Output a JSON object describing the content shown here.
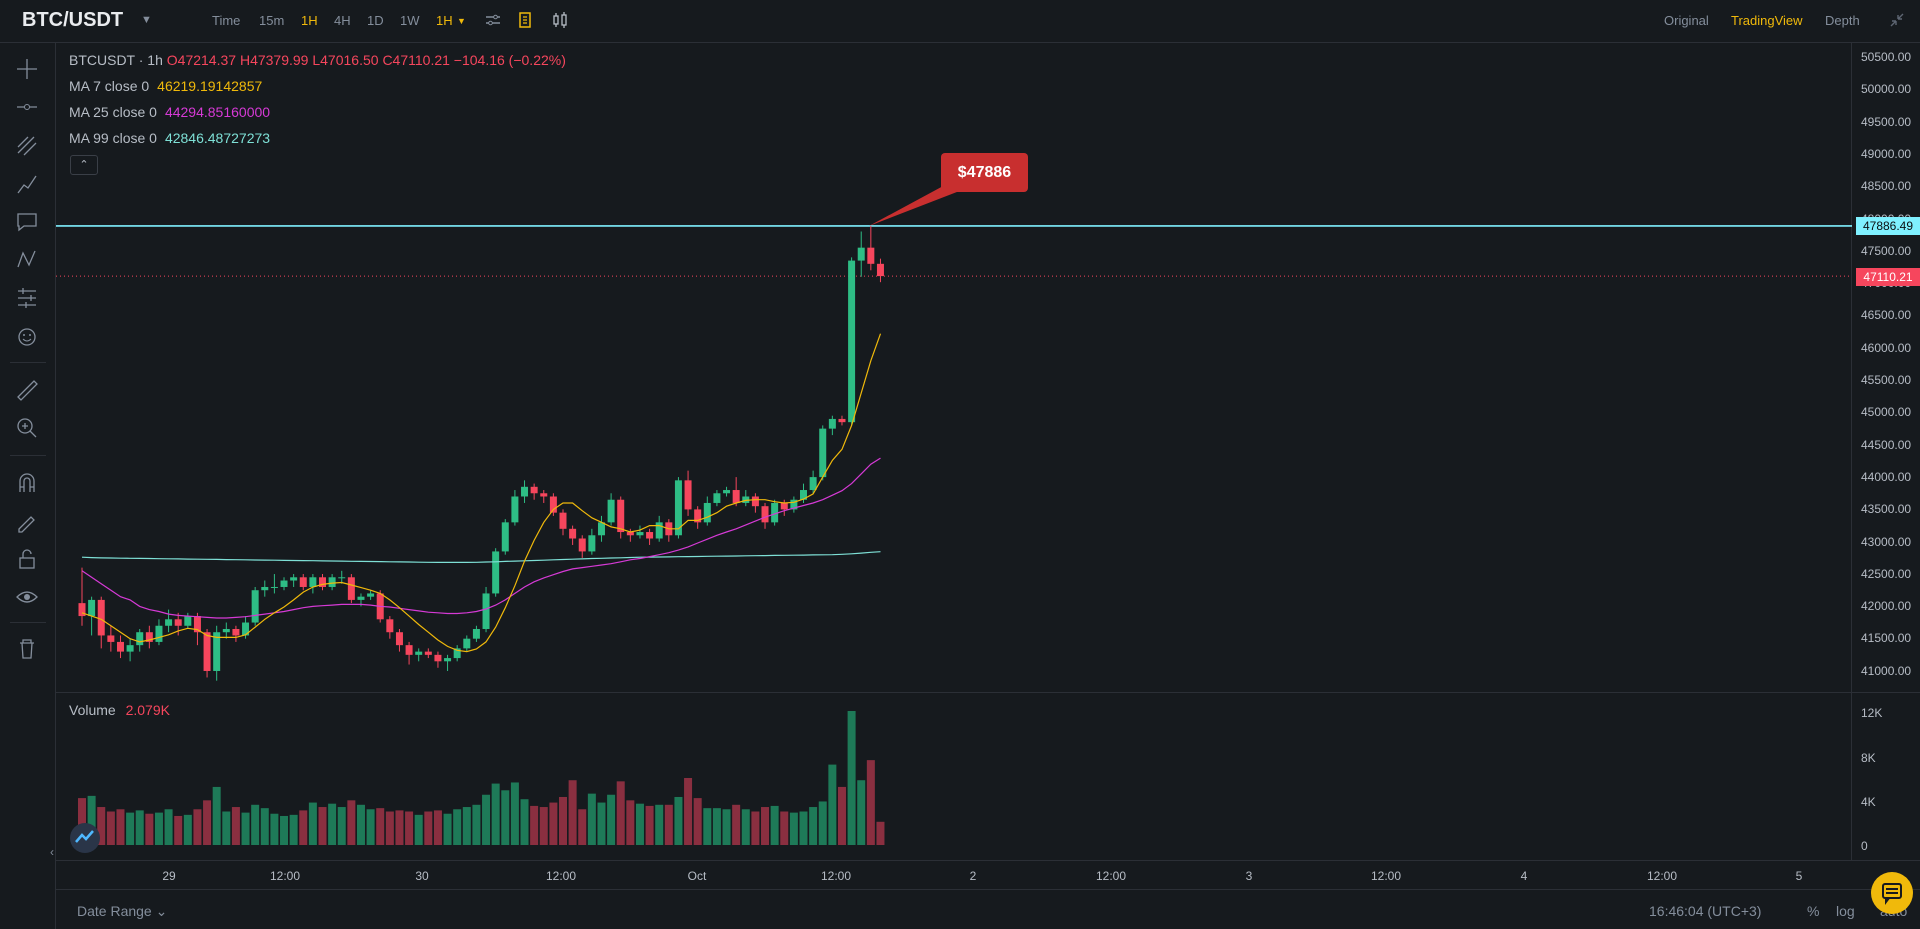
{
  "toolbar": {
    "pair": "BTC/USDT",
    "intervals": [
      "Time",
      "15m",
      "1H",
      "4H",
      "1D",
      "1W"
    ],
    "active_interval": "1H",
    "interval_dropdown": "1H",
    "views": [
      "Original",
      "TradingView",
      "Depth"
    ],
    "active_view": "TradingView"
  },
  "chart": {
    "symbol_line": "BTCUSDT · 1h",
    "ohlc": {
      "open": "O47214.37",
      "high": "H47379.99",
      "low": "L47016.50",
      "close": "C47110.21",
      "change": "−104.16 (−0.22%)"
    },
    "ma7": {
      "label": "MA 7 close 0",
      "value": "46219.19142857",
      "color": "#f0b90b"
    },
    "ma25": {
      "label": "MA 25 close 0",
      "value": "44294.85160000",
      "color": "#d63ad6"
    },
    "ma99": {
      "label": "MA 99 close 0",
      "value": "42846.48727273",
      "color": "#7ee0d6"
    },
    "volume": {
      "label": "Volume",
      "value": "2.079K"
    },
    "annotation": "$47886",
    "hline_price": "47886.49",
    "last_price": "47110.21",
    "collapse_glyph": "⌃",
    "price_ticks": [
      "50500.00",
      "50000.00",
      "49500.00",
      "49000.00",
      "48500.00",
      "48000.00",
      "47500.00",
      "47000.00",
      "46500.00",
      "46000.00",
      "45500.00",
      "45000.00",
      "44500.00",
      "44000.00",
      "43500.00",
      "43000.00",
      "42500.00",
      "42000.00",
      "41500.00",
      "41000.00"
    ],
    "volume_ticks": [
      "12K",
      "8K",
      "4K",
      "0"
    ],
    "time_ticks": [
      "29",
      "12:00",
      "30",
      "12:00",
      "Oct",
      "12:00",
      "2",
      "12:00",
      "3",
      "12:00",
      "4",
      "12:00",
      "5"
    ],
    "colors": {
      "up": "#2ebd85",
      "down": "#f6465d",
      "bg": "#161a1e",
      "hline": "#7ff0ff"
    }
  },
  "chart_data": {
    "type": "candlestick",
    "title": "BTCUSDT 1h",
    "ylim": [
      40800,
      50700
    ],
    "candles": [
      {
        "o": 42050,
        "c": 41850,
        "h": 42600,
        "l": 41700
      },
      {
        "o": 41850,
        "c": 42100,
        "h": 42150,
        "l": 41550
      },
      {
        "o": 42100,
        "c": 41550,
        "h": 42150,
        "l": 41350
      },
      {
        "o": 41550,
        "c": 41450,
        "h": 41700,
        "l": 41300
      },
      {
        "o": 41450,
        "c": 41300,
        "h": 41550,
        "l": 41200
      },
      {
        "o": 41300,
        "c": 41400,
        "h": 41500,
        "l": 41150
      },
      {
        "o": 41400,
        "c": 41600,
        "h": 41650,
        "l": 41300
      },
      {
        "o": 41600,
        "c": 41450,
        "h": 41700,
        "l": 41350
      },
      {
        "o": 41450,
        "c": 41700,
        "h": 41800,
        "l": 41400
      },
      {
        "o": 41700,
        "c": 41800,
        "h": 41950,
        "l": 41600
      },
      {
        "o": 41800,
        "c": 41700,
        "h": 41900,
        "l": 41550
      },
      {
        "o": 41700,
        "c": 41850,
        "h": 41900,
        "l": 41650
      },
      {
        "o": 41850,
        "c": 41600,
        "h": 41900,
        "l": 41400
      },
      {
        "o": 41600,
        "c": 41000,
        "h": 41650,
        "l": 40900
      },
      {
        "o": 41000,
        "c": 41600,
        "h": 41700,
        "l": 40850
      },
      {
        "o": 41600,
        "c": 41650,
        "h": 41750,
        "l": 41500
      },
      {
        "o": 41650,
        "c": 41550,
        "h": 41700,
        "l": 41450
      },
      {
        "o": 41550,
        "c": 41750,
        "h": 41850,
        "l": 41500
      },
      {
        "o": 41750,
        "c": 42250,
        "h": 42300,
        "l": 41700
      },
      {
        "o": 42250,
        "c": 42300,
        "h": 42400,
        "l": 42150
      },
      {
        "o": 42300,
        "c": 42300,
        "h": 42500,
        "l": 42200
      },
      {
        "o": 42300,
        "c": 42400,
        "h": 42450,
        "l": 42250
      },
      {
        "o": 42400,
        "c": 42450,
        "h": 42500,
        "l": 42300
      },
      {
        "o": 42450,
        "c": 42300,
        "h": 42500,
        "l": 42250
      },
      {
        "o": 42300,
        "c": 42450,
        "h": 42500,
        "l": 42200
      },
      {
        "o": 42450,
        "c": 42300,
        "h": 42500,
        "l": 42250
      },
      {
        "o": 42300,
        "c": 42450,
        "h": 42500,
        "l": 42250
      },
      {
        "o": 42450,
        "c": 42450,
        "h": 42550,
        "l": 42350
      },
      {
        "o": 42450,
        "c": 42100,
        "h": 42500,
        "l": 42050
      },
      {
        "o": 42100,
        "c": 42150,
        "h": 42200,
        "l": 42000
      },
      {
        "o": 42150,
        "c": 42200,
        "h": 42250,
        "l": 42100
      },
      {
        "o": 42200,
        "c": 41800,
        "h": 42250,
        "l": 41750
      },
      {
        "o": 41800,
        "c": 41600,
        "h": 41850,
        "l": 41500
      },
      {
        "o": 41600,
        "c": 41400,
        "h": 41650,
        "l": 41300
      },
      {
        "o": 41400,
        "c": 41250,
        "h": 41450,
        "l": 41100
      },
      {
        "o": 41250,
        "c": 41300,
        "h": 41350,
        "l": 41150
      },
      {
        "o": 41300,
        "c": 41250,
        "h": 41350,
        "l": 41200
      },
      {
        "o": 41250,
        "c": 41150,
        "h": 41300,
        "l": 41050
      },
      {
        "o": 41150,
        "c": 41200,
        "h": 41250,
        "l": 41000
      },
      {
        "o": 41200,
        "c": 41350,
        "h": 41400,
        "l": 41150
      },
      {
        "o": 41350,
        "c": 41500,
        "h": 41550,
        "l": 41300
      },
      {
        "o": 41500,
        "c": 41650,
        "h": 41700,
        "l": 41450
      },
      {
        "o": 41650,
        "c": 42200,
        "h": 42300,
        "l": 41600
      },
      {
        "o": 42200,
        "c": 42850,
        "h": 42900,
        "l": 42150
      },
      {
        "o": 42850,
        "c": 43300,
        "h": 43350,
        "l": 42800
      },
      {
        "o": 43300,
        "c": 43700,
        "h": 43800,
        "l": 43250
      },
      {
        "o": 43700,
        "c": 43850,
        "h": 43950,
        "l": 43600
      },
      {
        "o": 43850,
        "c": 43750,
        "h": 43900,
        "l": 43650
      },
      {
        "o": 43750,
        "c": 43700,
        "h": 43800,
        "l": 43600
      },
      {
        "o": 43700,
        "c": 43450,
        "h": 43750,
        "l": 43400
      },
      {
        "o": 43450,
        "c": 43200,
        "h": 43500,
        "l": 43100
      },
      {
        "o": 43200,
        "c": 43050,
        "h": 43250,
        "l": 42950
      },
      {
        "o": 43050,
        "c": 42850,
        "h": 43100,
        "l": 42750
      },
      {
        "o": 42850,
        "c": 43100,
        "h": 43200,
        "l": 42800
      },
      {
        "o": 43100,
        "c": 43300,
        "h": 43400,
        "l": 43000
      },
      {
        "o": 43300,
        "c": 43650,
        "h": 43750,
        "l": 43250
      },
      {
        "o": 43650,
        "c": 43150,
        "h": 43700,
        "l": 43050
      },
      {
        "o": 43150,
        "c": 43100,
        "h": 43200,
        "l": 43000
      },
      {
        "o": 43100,
        "c": 43150,
        "h": 43250,
        "l": 43050
      },
      {
        "o": 43150,
        "c": 43050,
        "h": 43200,
        "l": 42950
      },
      {
        "o": 43050,
        "c": 43300,
        "h": 43400,
        "l": 43000
      },
      {
        "o": 43300,
        "c": 43100,
        "h": 43350,
        "l": 43000
      },
      {
        "o": 43100,
        "c": 43950,
        "h": 44000,
        "l": 43050
      },
      {
        "o": 43950,
        "c": 43500,
        "h": 44100,
        "l": 43400
      },
      {
        "o": 43500,
        "c": 43300,
        "h": 43550,
        "l": 43200
      },
      {
        "o": 43300,
        "c": 43600,
        "h": 43700,
        "l": 43250
      },
      {
        "o": 43600,
        "c": 43750,
        "h": 43800,
        "l": 43550
      },
      {
        "o": 43750,
        "c": 43800,
        "h": 43850,
        "l": 43700
      },
      {
        "o": 43800,
        "c": 43600,
        "h": 44000,
        "l": 43550
      },
      {
        "o": 43600,
        "c": 43700,
        "h": 43800,
        "l": 43550
      },
      {
        "o": 43700,
        "c": 43550,
        "h": 43750,
        "l": 43450
      },
      {
        "o": 43550,
        "c": 43300,
        "h": 43600,
        "l": 43200
      },
      {
        "o": 43300,
        "c": 43600,
        "h": 43650,
        "l": 43250
      },
      {
        "o": 43600,
        "c": 43500,
        "h": 43650,
        "l": 43400
      },
      {
        "o": 43500,
        "c": 43650,
        "h": 43700,
        "l": 43450
      },
      {
        "o": 43650,
        "c": 43800,
        "h": 43900,
        "l": 43600
      },
      {
        "o": 43800,
        "c": 44000,
        "h": 44100,
        "l": 43750
      },
      {
        "o": 44000,
        "c": 44750,
        "h": 44800,
        "l": 43950
      },
      {
        "o": 44750,
        "c": 44900,
        "h": 44950,
        "l": 44650
      },
      {
        "o": 44900,
        "c": 44850,
        "h": 44950,
        "l": 44800
      },
      {
        "o": 44850,
        "c": 47350,
        "h": 47400,
        "l": 44800
      },
      {
        "o": 47350,
        "c": 47550,
        "h": 47800,
        "l": 47100
      },
      {
        "o": 47550,
        "c": 47300,
        "h": 47886,
        "l": 47200
      },
      {
        "o": 47300,
        "c": 47110,
        "h": 47380,
        "l": 47016
      }
    ],
    "ma7": [
      41900,
      41850,
      41800,
      41700,
      41600,
      41500,
      41450,
      41480,
      41520,
      41560,
      41620,
      41660,
      41640,
      41550,
      41520,
      41520,
      41520,
      41560,
      41680,
      41800,
      41900,
      41990,
      42100,
      42220,
      42300,
      42340,
      42360,
      42370,
      42330,
      42290,
      42250,
      42200,
      42100,
      41980,
      41850,
      41720,
      41600,
      41480,
      41380,
      41320,
      41300,
      41340,
      41450,
      41680,
      41980,
      42320,
      42700,
      43020,
      43300,
      43500,
      43600,
      43600,
      43480,
      43370,
      43300,
      43230,
      43200,
      43150,
      43180,
      43250,
      43250,
      43200,
      43200,
      43330,
      43330,
      43380,
      43450,
      43550,
      43600,
      43640,
      43650,
      43650,
      43620,
      43600,
      43610,
      43660,
      43740,
      44000,
      44260,
      44430,
      44800,
      45300,
      45800,
      46219
    ],
    "ma25": [
      42550,
      42450,
      42350,
      42250,
      42150,
      42100,
      42000,
      41950,
      41920,
      41880,
      41860,
      41850,
      41840,
      41830,
      41820,
      41820,
      41830,
      41840,
      41860,
      41880,
      41900,
      41920,
      41950,
      41980,
      42000,
      42010,
      42020,
      42030,
      42030,
      42030,
      42020,
      42000,
      41990,
      41970,
      41950,
      41930,
      41910,
      41900,
      41890,
      41890,
      41900,
      41920,
      41960,
      42020,
      42100,
      42200,
      42300,
      42380,
      42440,
      42490,
      42540,
      42580,
      42600,
      42620,
      42640,
      42660,
      42690,
      42720,
      42740,
      42770,
      42800,
      42830,
      42870,
      42920,
      42980,
      43040,
      43100,
      43150,
      43200,
      43260,
      43320,
      43380,
      43430,
      43480,
      43520,
      43560,
      43600,
      43650,
      43720,
      43790,
      43900,
      44050,
      44200,
      44294
    ],
    "ma99": [
      42760,
      42755,
      42750,
      42748,
      42746,
      42744,
      42742,
      42740,
      42738,
      42736,
      42734,
      42732,
      42730,
      42728,
      42726,
      42724,
      42722,
      42720,
      42718,
      42716,
      42714,
      42712,
      42710,
      42708,
      42706,
      42704,
      42702,
      42700,
      42698,
      42696,
      42694,
      42692,
      42690,
      42688,
      42686,
      42684,
      42682,
      42680,
      42680,
      42680,
      42680,
      42682,
      42686,
      42690,
      42695,
      42700,
      42705,
      42710,
      42715,
      42720,
      42725,
      42730,
      42735,
      42740,
      42744,
      42748,
      42752,
      42756,
      42760,
      42762,
      42764,
      42766,
      42768,
      42770,
      42772,
      42774,
      42776,
      42778,
      42780,
      42782,
      42784,
      42786,
      42788,
      42790,
      42792,
      42794,
      42796,
      42798,
      42800,
      42806,
      42814,
      42824,
      42836,
      42846
    ],
    "volumes": [
      4200,
      4400,
      3400,
      3000,
      3200,
      2900,
      3100,
      2800,
      2900,
      3200,
      2600,
      2700,
      3200,
      4000,
      5200,
      3000,
      3400,
      2900,
      3600,
      3300,
      2800,
      2600,
      2700,
      3100,
      3800,
      3400,
      3700,
      3400,
      4000,
      3600,
      3200,
      3300,
      3000,
      3100,
      3000,
      2700,
      3000,
      3100,
      2800,
      3200,
      3400,
      3600,
      4500,
      5500,
      4900,
      5600,
      4100,
      3500,
      3400,
      3800,
      4300,
      5800,
      3200,
      4600,
      3800,
      4500,
      5700,
      4000,
      3700,
      3500,
      3600,
      3600,
      4300,
      6000,
      4200,
      3300,
      3300,
      3200,
      3600,
      3200,
      3000,
      3400,
      3500,
      3000,
      2900,
      3000,
      3400,
      3900,
      7200,
      5200,
      12000,
      5800,
      7600,
      2079
    ],
    "volume_ylim": [
      0,
      12800
    ]
  }
}
